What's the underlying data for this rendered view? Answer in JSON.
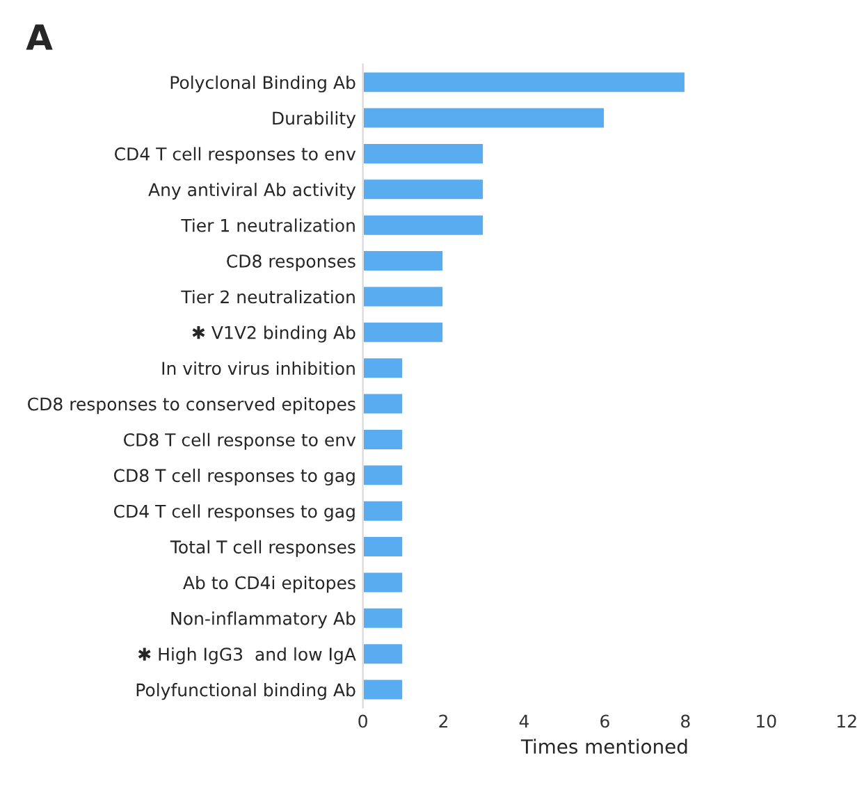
{
  "chart_data": {
    "type": "bar",
    "orientation": "horizontal",
    "title": "A",
    "xlabel": "Times mentioned",
    "categories": [
      "Polyclonal Binding Ab",
      "Durability",
      "CD4 T cell responses to env",
      "Any antiviral Ab activity",
      "Tier 1 neutralization",
      "CD8 responses",
      "Tier 2 neutralization",
      "✱ V1V2 binding Ab",
      "In vitro virus inhibition",
      "CD8 responses to conserved epitopes",
      "CD8 T cell response to env",
      "CD8 T cell responses to gag",
      "CD4 T cell responses to gag",
      "Total T cell responses",
      "Ab to CD4i epitopes",
      "Non-inflammatory Ab",
      "✱ High IgG3  and low IgA",
      "Polyfunctional binding Ab"
    ],
    "values": [
      8,
      6,
      3,
      3,
      3,
      2,
      2,
      2,
      1,
      1,
      1,
      1,
      1,
      1,
      1,
      1,
      1,
      1
    ],
    "color": "#5aacf0",
    "xlim": [
      0,
      12
    ],
    "xticks": [
      0,
      2,
      4,
      6,
      8,
      10,
      12
    ],
    "grid": false,
    "legend": false
  }
}
